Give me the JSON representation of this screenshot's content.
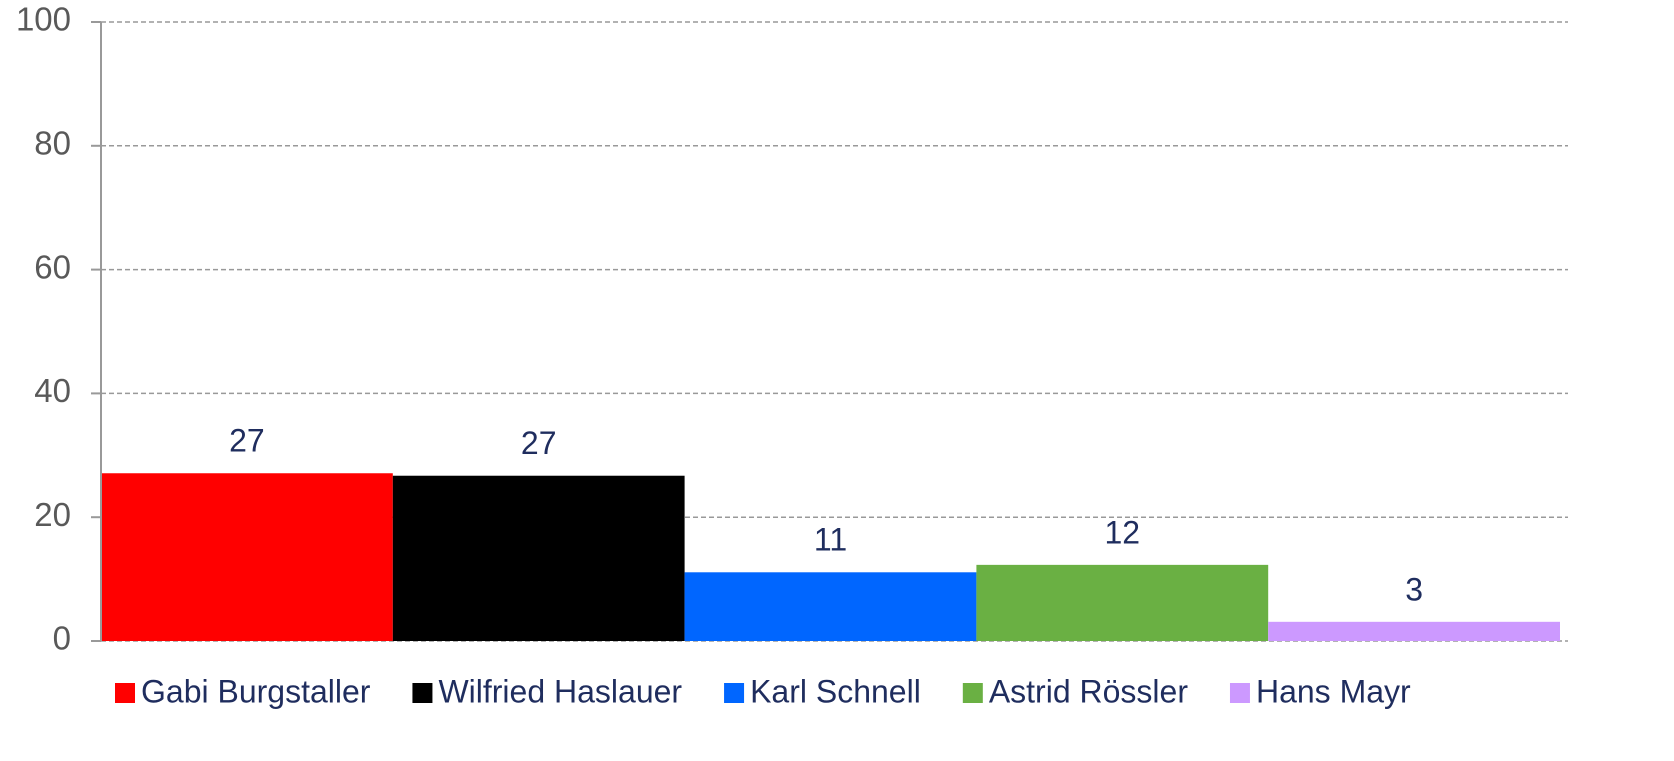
{
  "chart_data": {
    "type": "bar",
    "series": [
      {
        "name": "Gabi Burgstaller",
        "color": "#ff0000",
        "values": [
          27.1
        ],
        "value_labels": [
          "27"
        ]
      },
      {
        "name": "Wilfried Haslauer",
        "color": "#000000",
        "values": [
          26.7
        ],
        "value_labels": [
          "27"
        ]
      },
      {
        "name": "Karl Schnell",
        "color": "#0066ff",
        "values": [
          11.1
        ],
        "value_labels": [
          "11"
        ]
      },
      {
        "name": "Astrid Rössler",
        "color": "#6ab043",
        "values": [
          12.3
        ],
        "value_labels": [
          "12"
        ]
      },
      {
        "name": "Hans Mayr",
        "color": "#cc99ff",
        "values": [
          3.1
        ],
        "value_labels": [
          "3"
        ]
      }
    ],
    "ylim": [
      0,
      100
    ],
    "yticks": [
      0,
      20,
      40,
      60,
      80,
      100
    ],
    "grid": true,
    "legend": "bottom"
  }
}
